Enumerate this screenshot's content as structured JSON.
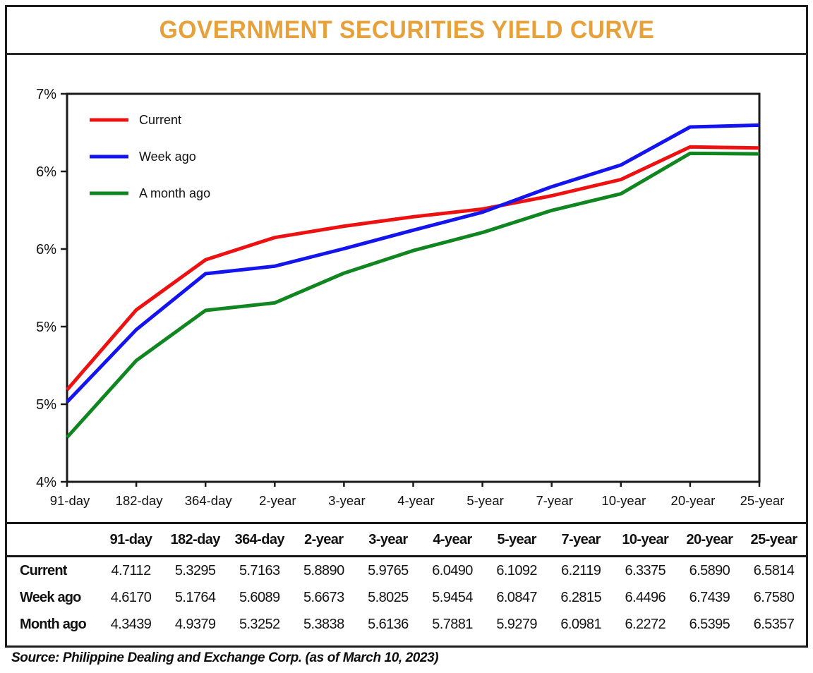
{
  "title": "GOVERNMENT SECURITIES YIELD CURVE",
  "source": "Source: Philippine Dealing and Exchange Corp. (as of March 10, 2023)",
  "colors": {
    "title": "#E7A13A",
    "axis": "#1a1a1a",
    "current": "#ED1111",
    "week_ago": "#1414EE",
    "month_ago": "#0F861F"
  },
  "chart_data": {
    "type": "line",
    "categories": [
      "91-day",
      "182-day",
      "364-day",
      "2-year",
      "3-year",
      "4-year",
      "5-year",
      "7-year",
      "10-year",
      "20-year",
      "25-year"
    ],
    "series": [
      {
        "name": "Current",
        "color": "#ED1111",
        "values": [
          4.7112,
          5.3295,
          5.7163,
          5.889,
          5.9765,
          6.049,
          6.1092,
          6.2119,
          6.3375,
          6.589,
          6.5814
        ]
      },
      {
        "name": "Week ago",
        "color": "#1414EE",
        "values": [
          4.617,
          5.1764,
          5.6089,
          5.6673,
          5.8025,
          5.9454,
          6.0847,
          6.2815,
          6.4496,
          6.7439,
          6.758
        ]
      },
      {
        "name": "A month ago",
        "color": "#0F861F",
        "values": [
          4.3439,
          4.9379,
          5.3252,
          5.3838,
          5.6136,
          5.7881,
          5.9279,
          6.0981,
          6.2272,
          6.5395,
          6.5357
        ]
      }
    ],
    "ylim": [
      4,
      7
    ],
    "ytick_labels": [
      "7%",
      "6%",
      "6%",
      "5%",
      "5%",
      "4%"
    ],
    "xlabel": "",
    "ylabel": "",
    "grid": false,
    "legend_position": "top-left"
  },
  "table": {
    "columns": [
      "91-day",
      "182-day",
      "364-day",
      "2-year",
      "3-year",
      "4-year",
      "5-year",
      "7-year",
      "10-year",
      "20-year",
      "25-year"
    ],
    "rows": [
      {
        "label": "Current",
        "values": [
          "4.7112",
          "5.3295",
          "5.7163",
          "5.8890",
          "5.9765",
          "6.0490",
          "6.1092",
          "6.2119",
          "6.3375",
          "6.5890",
          "6.5814"
        ]
      },
      {
        "label": "Week ago",
        "values": [
          "4.6170",
          "5.1764",
          "5.6089",
          "5.6673",
          "5.8025",
          "5.9454",
          "6.0847",
          "6.2815",
          "6.4496",
          "6.7439",
          "6.7580"
        ]
      },
      {
        "label": "Month ago",
        "values": [
          "4.3439",
          "4.9379",
          "5.3252",
          "5.3838",
          "5.6136",
          "5.7881",
          "5.9279",
          "6.0981",
          "6.2272",
          "6.5395",
          "6.5357"
        ]
      }
    ]
  }
}
